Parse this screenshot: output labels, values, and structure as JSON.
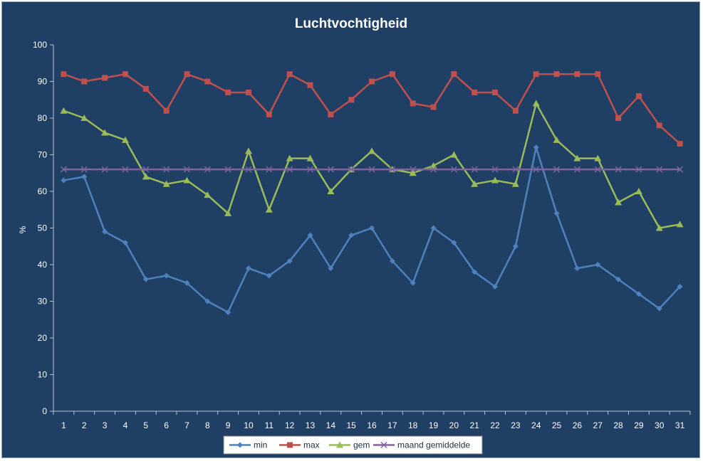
{
  "chart_data": {
    "type": "line",
    "title": "Luchtvochtigheid",
    "ylabel": "%",
    "xlabel": "",
    "ylim": [
      0,
      100
    ],
    "yticks": [
      0,
      10,
      20,
      30,
      40,
      50,
      60,
      70,
      80,
      90,
      100
    ],
    "categories": [
      "1",
      "2",
      "3",
      "4",
      "5",
      "6",
      "7",
      "8",
      "9",
      "10",
      "11",
      "12",
      "13",
      "14",
      "15",
      "16",
      "17",
      "18",
      "19",
      "20",
      "21",
      "22",
      "23",
      "24",
      "25",
      "26",
      "27",
      "28",
      "29",
      "30",
      "31"
    ],
    "grid": false,
    "legend_position": "bottom",
    "series": [
      {
        "name": "min",
        "color": "#4f81bd",
        "marker": "diamond",
        "values": [
          63,
          64,
          49,
          46,
          36,
          37,
          35,
          30,
          27,
          39,
          37,
          41,
          48,
          39,
          48,
          50,
          41,
          35,
          50,
          46,
          38,
          34,
          45,
          72,
          54,
          39,
          40,
          36,
          32,
          28,
          34
        ]
      },
      {
        "name": "max",
        "color": "#c0504d",
        "marker": "square",
        "values": [
          92,
          90,
          91,
          92,
          88,
          82,
          92,
          90,
          87,
          87,
          81,
          92,
          89,
          81,
          85,
          90,
          92,
          84,
          83,
          92,
          87,
          87,
          82,
          92,
          92,
          92,
          92,
          80,
          86,
          78,
          73
        ]
      },
      {
        "name": "gem",
        "color": "#9bbb59",
        "marker": "triangle",
        "values": [
          82,
          80,
          76,
          74,
          64,
          62,
          63,
          59,
          54,
          71,
          55,
          69,
          69,
          60,
          66,
          71,
          66,
          65,
          67,
          70,
          62,
          63,
          62,
          84,
          74,
          69,
          69,
          57,
          60,
          50,
          51
        ]
      },
      {
        "name": "maand gemiddelde",
        "color": "#8064a2",
        "marker": "x",
        "values": [
          66,
          66,
          66,
          66,
          66,
          66,
          66,
          66,
          66,
          66,
          66,
          66,
          66,
          66,
          66,
          66,
          66,
          66,
          66,
          66,
          66,
          66,
          66,
          66,
          66,
          66,
          66,
          66,
          66,
          66,
          66
        ]
      }
    ]
  }
}
